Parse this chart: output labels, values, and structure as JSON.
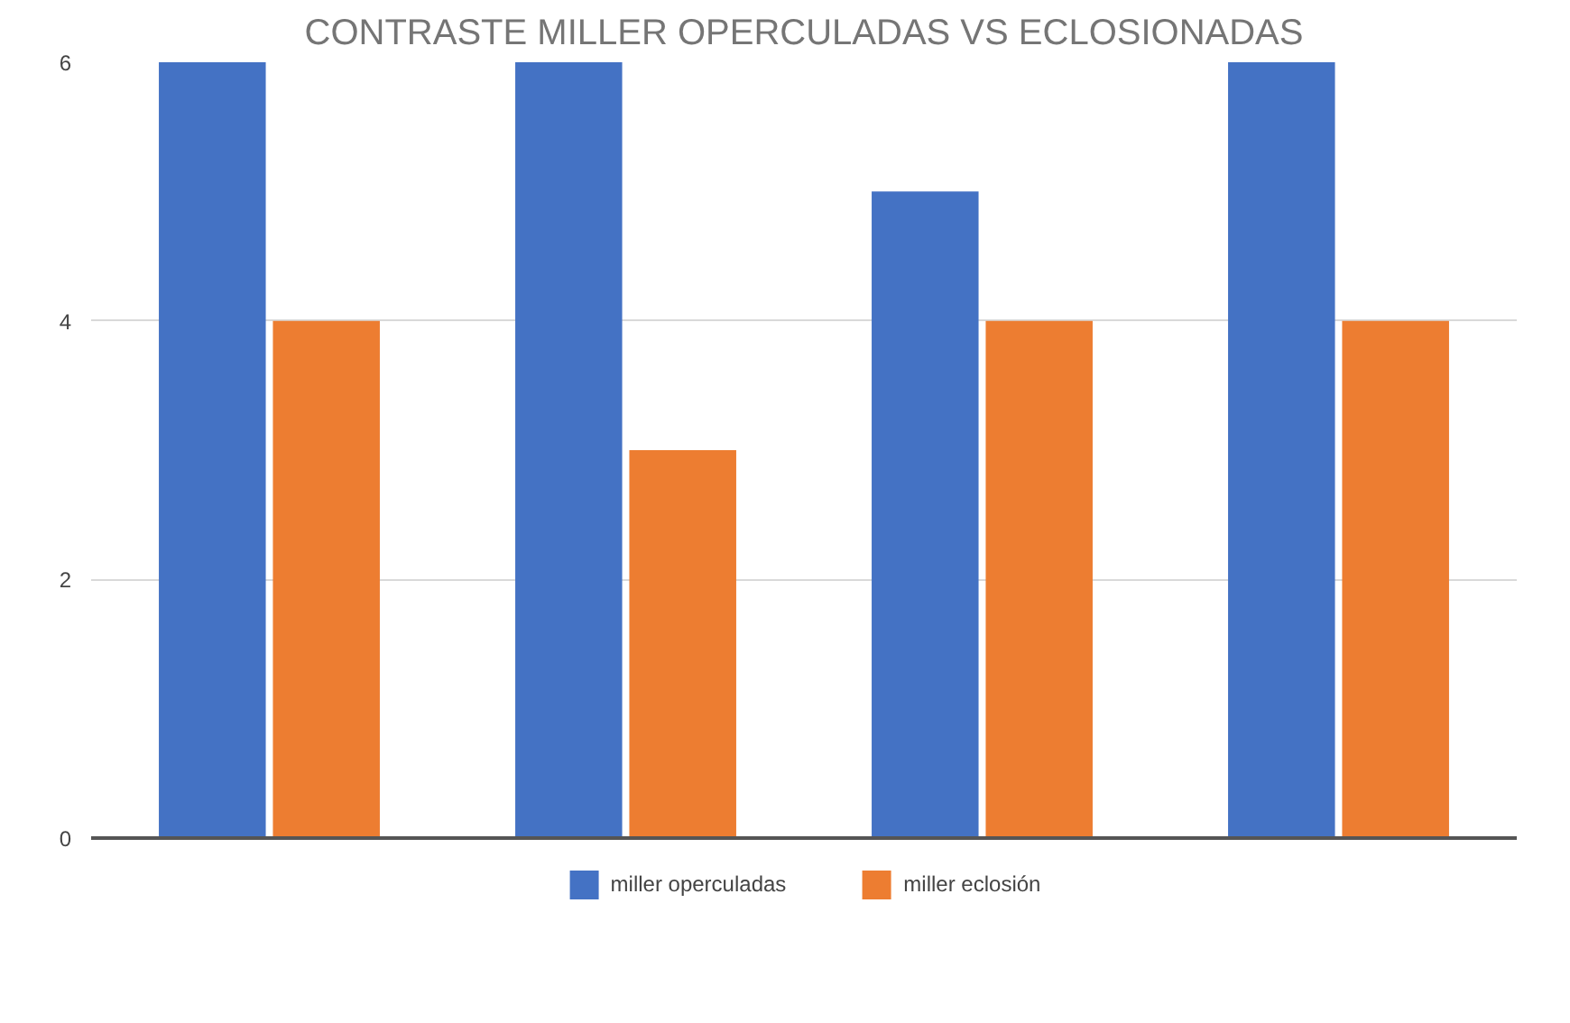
{
  "chart_data": {
    "type": "bar",
    "title": "CONTRASTE MILLER OPERCULADAS VS ECLOSIONADAS",
    "categories": [
      null,
      null,
      null,
      null
    ],
    "series": [
      {
        "name": "miller operculadas",
        "color": "#4472c4",
        "values": [
          6,
          6,
          5,
          6
        ]
      },
      {
        "name": "miller eclosión",
        "color": "#ed7d31",
        "values": [
          4,
          3,
          4,
          4
        ]
      }
    ],
    "ylim": [
      0,
      6
    ],
    "yticks": [
      0,
      2,
      4,
      6
    ],
    "grid": "y",
    "legend": "bottom",
    "tick_labels": "y"
  }
}
